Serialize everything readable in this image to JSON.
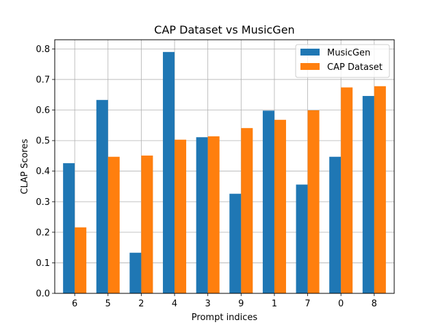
{
  "chart_data": {
    "type": "bar",
    "title": "CAP Dataset vs MusicGen",
    "xlabel": "Prompt indices",
    "ylabel": "CLAP Scores",
    "categories": [
      "6",
      "5",
      "2",
      "4",
      "3",
      "9",
      "1",
      "7",
      "0",
      "8"
    ],
    "series": [
      {
        "name": "MusicGen",
        "color": "#1f77b4",
        "values": [
          0.426,
          0.633,
          0.133,
          0.79,
          0.511,
          0.326,
          0.598,
          0.356,
          0.447,
          0.646
        ]
      },
      {
        "name": "CAP Dataset",
        "color": "#ff7f0e",
        "values": [
          0.216,
          0.447,
          0.451,
          0.503,
          0.514,
          0.541,
          0.568,
          0.599,
          0.674,
          0.678
        ]
      }
    ],
    "ylim": [
      0,
      0.83
    ],
    "yticks": [
      "0.0",
      "0.1",
      "0.2",
      "0.3",
      "0.4",
      "0.5",
      "0.6",
      "0.7",
      "0.8"
    ],
    "grid": true,
    "legend_position": "top-right"
  }
}
